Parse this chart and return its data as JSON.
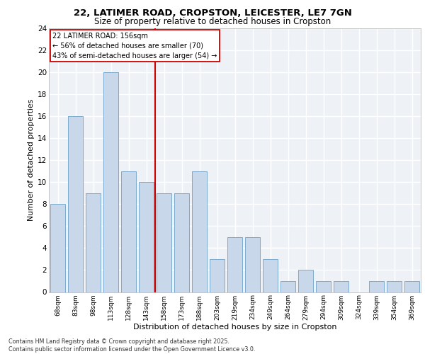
{
  "title1": "22, LATIMER ROAD, CROPSTON, LEICESTER, LE7 7GN",
  "title2": "Size of property relative to detached houses in Cropston",
  "xlabel": "Distribution of detached houses by size in Cropston",
  "ylabel": "Number of detached properties",
  "categories": [
    "68sqm",
    "83sqm",
    "98sqm",
    "113sqm",
    "128sqm",
    "143sqm",
    "158sqm",
    "173sqm",
    "188sqm",
    "203sqm",
    "219sqm",
    "234sqm",
    "249sqm",
    "264sqm",
    "279sqm",
    "294sqm",
    "309sqm",
    "324sqm",
    "339sqm",
    "354sqm",
    "369sqm"
  ],
  "values": [
    8,
    16,
    9,
    20,
    11,
    10,
    9,
    9,
    11,
    3,
    5,
    5,
    3,
    1,
    2,
    1,
    1,
    0,
    1,
    1,
    1
  ],
  "bar_color": "#c8d8ea",
  "bar_edge_color": "#7aaacc",
  "property_label": "22 LATIMER ROAD: 156sqm",
  "annotation_line1": "← 56% of detached houses are smaller (70)",
  "annotation_line2": "43% of semi-detached houses are larger (54) →",
  "vline_x_index": 6,
  "vline_color": "#cc0000",
  "ylim": [
    0,
    24
  ],
  "yticks": [
    0,
    2,
    4,
    6,
    8,
    10,
    12,
    14,
    16,
    18,
    20,
    22,
    24
  ],
  "bg_color": "#eef2f7",
  "grid_color": "#ffffff",
  "footnote1": "Contains HM Land Registry data © Crown copyright and database right 2025.",
  "footnote2": "Contains public sector information licensed under the Open Government Licence v3.0."
}
